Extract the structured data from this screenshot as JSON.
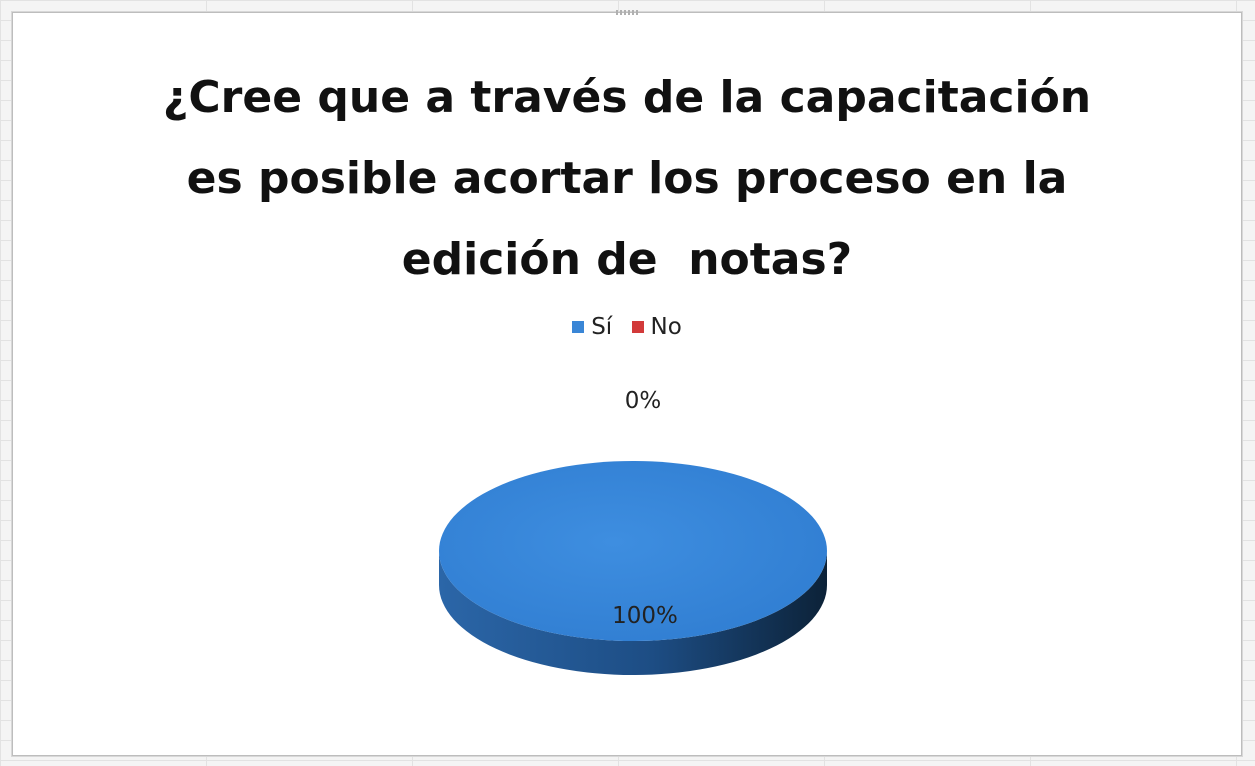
{
  "chart_data": {
    "type": "pie",
    "title_lines": [
      "¿Cree que a través de la capacitación",
      "es posible acortar los proceso en la",
      "edición de  notas?"
    ],
    "categories": [
      "Sí",
      "No"
    ],
    "values": [
      100,
      0
    ],
    "data_labels": [
      "100%",
      "0%"
    ],
    "legend": [
      {
        "label": "Sí",
        "color": "#3a86d6"
      },
      {
        "label": "No",
        "color": "#d23a3a"
      }
    ],
    "legend_position": "top",
    "style": "3d"
  }
}
